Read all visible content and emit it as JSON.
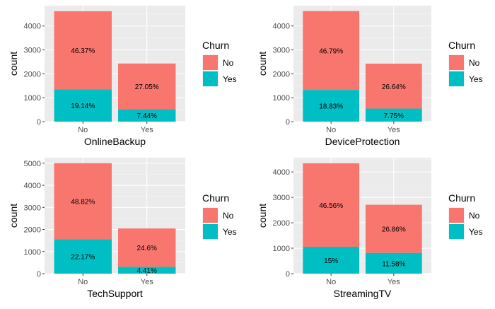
{
  "colors": {
    "no": "#F8766D",
    "yes": "#00BFC4",
    "panel_bg": "#EBEBEB",
    "grid_major": "#FFFFFF",
    "axis_text": "#4D4D4D",
    "title_text": "#000000"
  },
  "legend": {
    "title": "Churn",
    "items": [
      {
        "label": "No",
        "color_key": "no"
      },
      {
        "label": "Yes",
        "color_key": "yes"
      }
    ]
  },
  "chart_data": [
    {
      "type": "bar",
      "stacked": true,
      "xlabel": "OnlineBackup",
      "ylabel": "count",
      "categories": [
        "No",
        "Yes"
      ],
      "series": [
        {
          "name": "No",
          "values": [
            3268,
            1906
          ],
          "labels": [
            "46.37%",
            "27.05%"
          ]
        },
        {
          "name": "Yes",
          "values": [
            1349,
            524
          ],
          "labels": [
            "19.14%",
            "7.44%"
          ]
        }
      ],
      "ylim": [
        0,
        4850
      ],
      "yticks": [
        0,
        1000,
        2000,
        3000,
        4000
      ],
      "grid": true,
      "legend_position": "right"
    },
    {
      "type": "bar",
      "stacked": true,
      "xlabel": "DeviceProtection",
      "ylabel": "count",
      "categories": [
        "No",
        "Yes"
      ],
      "series": [
        {
          "name": "No",
          "values": [
            3297,
            1877
          ],
          "labels": [
            "46.79%",
            "26.64%"
          ]
        },
        {
          "name": "Yes",
          "values": [
            1327,
            546
          ],
          "labels": [
            "18.83%",
            "7.75%"
          ]
        }
      ],
      "ylim": [
        0,
        4850
      ],
      "yticks": [
        0,
        1000,
        2000,
        3000,
        4000
      ],
      "grid": true,
      "legend_position": "right"
    },
    {
      "type": "bar",
      "stacked": true,
      "xlabel": "TechSupport",
      "ylabel": "count",
      "categories": [
        "No",
        "Yes"
      ],
      "series": [
        {
          "name": "No",
          "values": [
            3440,
            1734
          ],
          "labels": [
            "48.82%",
            "24.6%"
          ]
        },
        {
          "name": "Yes",
          "values": [
            1562,
            311
          ],
          "labels": [
            "22.17%",
            "4.41%"
          ]
        }
      ],
      "ylim": [
        0,
        5250
      ],
      "yticks": [
        0,
        1000,
        2000,
        3000,
        4000,
        5000
      ],
      "grid": true,
      "legend_position": "right"
    },
    {
      "type": "bar",
      "stacked": true,
      "xlabel": "StreamingTV",
      "ylabel": "count",
      "categories": [
        "No",
        "Yes"
      ],
      "series": [
        {
          "name": "No",
          "values": [
            3281,
            1893
          ],
          "labels": [
            "46.56%",
            "26.86%"
          ]
        },
        {
          "name": "Yes",
          "values": [
            1057,
            816
          ],
          "labels": [
            "15%",
            "11.58%"
          ]
        }
      ],
      "ylim": [
        0,
        4560
      ],
      "yticks": [
        0,
        1000,
        2000,
        3000,
        4000
      ],
      "grid": true,
      "legend_position": "right"
    }
  ]
}
